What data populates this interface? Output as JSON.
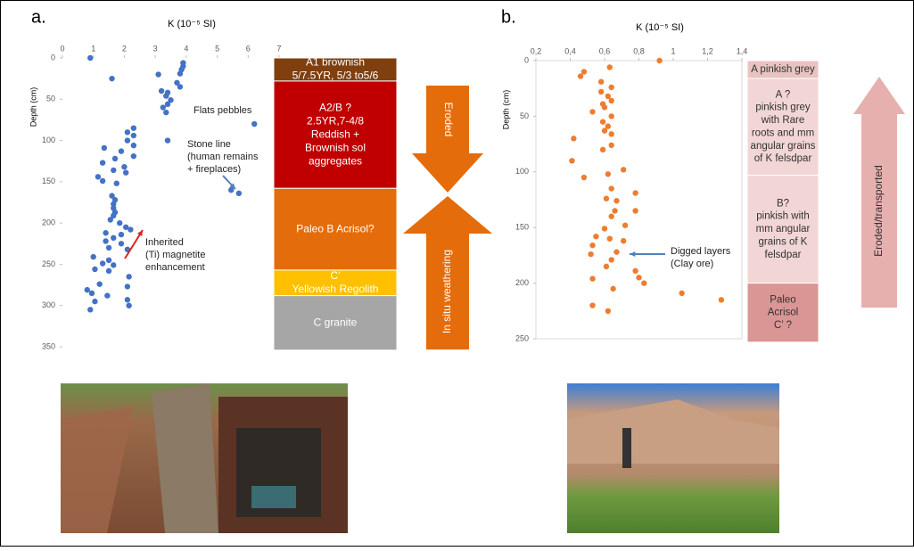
{
  "chart_data": [
    {
      "type": "scatter",
      "panel": "a.",
      "xlabel": "K (10⁻⁵ SI)",
      "ylabel": "Depth (cm)",
      "color": "#4472c4",
      "y_inverted": true,
      "frame": false,
      "xlim": [
        0,
        7
      ],
      "xticks": [
        0,
        1,
        2,
        3,
        4,
        5,
        6,
        7
      ],
      "ylim": [
        0,
        350
      ],
      "yticks": [
        0,
        50,
        100,
        150,
        200,
        250,
        300,
        350
      ],
      "x": [
        0.9,
        3.9,
        3.9,
        3.85,
        3.8,
        3.1,
        1.6,
        3.7,
        3.8,
        3.2,
        3.4,
        3.35,
        3.5,
        3.4,
        3.25,
        3.35,
        6.2,
        2.3,
        2.1,
        2.3,
        3.4,
        2.1,
        2.3,
        1.35,
        1.9,
        2.3,
        1.7,
        1.3,
        2.0,
        1.65,
        2.05,
        1.15,
        1.3,
        1.75,
        5.45,
        5.7,
        1.6,
        1.7,
        1.65,
        1.65,
        1.7,
        1.65,
        1.55,
        1.85,
        2.05,
        2.2,
        1.4,
        1.9,
        1.65,
        1.4,
        1.9,
        1.5,
        2.1,
        1.0,
        1.5,
        1.3,
        1.65,
        1.05,
        1.5,
        2.15,
        1.2,
        2.1,
        0.8,
        0.95,
        1.45,
        2.1,
        1.05,
        2.15,
        0.9
      ],
      "y": [
        0,
        6,
        10,
        14,
        19,
        20,
        25,
        30,
        35,
        40,
        42,
        46,
        51,
        56,
        60,
        66,
        80,
        85,
        90,
        94,
        100,
        100,
        106,
        109,
        113,
        119,
        122,
        127,
        132,
        136,
        139,
        144,
        149,
        152,
        160,
        164,
        167,
        172,
        177,
        182,
        187,
        191,
        196,
        200,
        205,
        208,
        212,
        214,
        218,
        222,
        225,
        230,
        232,
        241,
        245,
        249,
        251,
        256,
        258,
        265,
        274,
        277,
        281,
        285,
        288,
        293,
        295,
        300,
        305
      ],
      "horizons": [
        {
          "lines": [
            "A1 brownish",
            "5/7.5YR, 5/3 to5/6"
          ],
          "color": "#7f3f0f",
          "top": 0,
          "bottom": 28
        },
        {
          "lines": [
            "A2/B ?",
            "2.5YR,7-4/8",
            "Reddish +",
            "Brownish sol",
            "aggregates"
          ],
          "color": "#c00000",
          "top": 28,
          "bottom": 158
        },
        {
          "lines": [
            "Paleo B Acrisol?"
          ],
          "color": "#e46c0a",
          "top": 158,
          "bottom": 257
        },
        {
          "lines": [
            "C’",
            "Yellowish Regolith"
          ],
          "color": "#ffc000",
          "top": 257,
          "bottom": 288
        },
        {
          "lines": [
            "C granite"
          ],
          "color": "#a6a6a6",
          "top": 288,
          "bottom": 354
        }
      ],
      "arrows": [
        {
          "label": "Eroded",
          "color": "#e46c0a"
        },
        {
          "label": "In situ weathering",
          "color": "#e46c0a"
        }
      ],
      "annotations": [
        {
          "lines": [
            "Flats pebbles"
          ]
        },
        {
          "lines": [
            "Stone line",
            "(human remains",
            "+ fireplaces)"
          ]
        },
        {
          "lines": [
            "Inherited",
            "(Ti) magnetite",
            "enhancement"
          ]
        }
      ]
    },
    {
      "type": "scatter",
      "panel": "b.",
      "xlabel": "K (10⁻⁵ SI)",
      "ylabel": "Depth (cm)",
      "color": "#ed7d31",
      "y_inverted": true,
      "frame": true,
      "xlim": [
        0.2,
        1.4
      ],
      "xticks": [
        {
          "value": 0.2,
          "label": "0,2"
        },
        {
          "value": 0.4,
          "label": "0,4"
        },
        {
          "value": 0.6,
          "label": "0,6"
        },
        {
          "value": 0.8,
          "label": "0,8"
        },
        {
          "value": 1,
          "label": "1"
        },
        {
          "value": 1.2,
          "label": "1,2"
        },
        {
          "value": 1.4,
          "label": "1,4"
        }
      ],
      "ylim": [
        0,
        250
      ],
      "yticks": [
        0,
        50,
        100,
        150,
        200,
        250
      ],
      "x": [
        0.92,
        0.48,
        0.63,
        0.46,
        0.58,
        0.64,
        0.58,
        0.62,
        0.64,
        0.59,
        0.6,
        0.53,
        0.64,
        0.59,
        0.62,
        0.6,
        0.64,
        0.42,
        0.64,
        0.59,
        0.41,
        0.71,
        0.62,
        0.48,
        0.64,
        0.78,
        0.61,
        0.67,
        0.78,
        0.66,
        0.64,
        0.72,
        0.6,
        0.55,
        0.63,
        0.71,
        0.53,
        0.67,
        0.52,
        0.64,
        0.61,
        0.78,
        0.8,
        0.83,
        0.53,
        1.05,
        1.28,
        0.65,
        0.53,
        0.62
      ],
      "y": [
        0,
        10,
        6,
        14,
        19,
        24,
        28,
        32,
        36,
        39,
        42,
        46,
        50,
        55,
        59,
        63,
        66,
        70,
        76,
        80,
        90,
        98,
        102,
        105,
        115,
        119,
        124,
        126,
        135,
        135,
        140,
        148,
        151,
        158,
        160,
        162,
        166,
        172,
        174,
        179,
        185,
        189,
        195,
        200,
        196,
        209,
        215,
        205,
        220,
        225
      ],
      "horizons": [
        {
          "lines": [
            "A pinkish grey"
          ],
          "color": "#e8c3c2",
          "top": 0,
          "bottom": 16
        },
        {
          "lines": [
            "A ?",
            "pinkish grey",
            "with Rare",
            "roots and mm",
            "angular grains",
            "of K felsdpar"
          ],
          "color": "#f2d6d5",
          "top": 16,
          "bottom": 103
        },
        {
          "lines": [
            "B?",
            "pinkish with",
            "mm  angular",
            "grains of K",
            "felsdpar"
          ],
          "color": "#f2d6d5",
          "top": 103,
          "bottom": 200
        },
        {
          "lines": [
            "Paleo",
            "Acrisol",
            "C’ ?"
          ],
          "color": "#d99694",
          "top": 200,
          "bottom": 253
        }
      ],
      "arrows": [
        {
          "label": "Eroded/transported",
          "color": "#e6b0ae"
        }
      ],
      "annotations": [
        {
          "lines": [
            "Digged layers",
            "(Clay ore)"
          ]
        }
      ]
    }
  ]
}
